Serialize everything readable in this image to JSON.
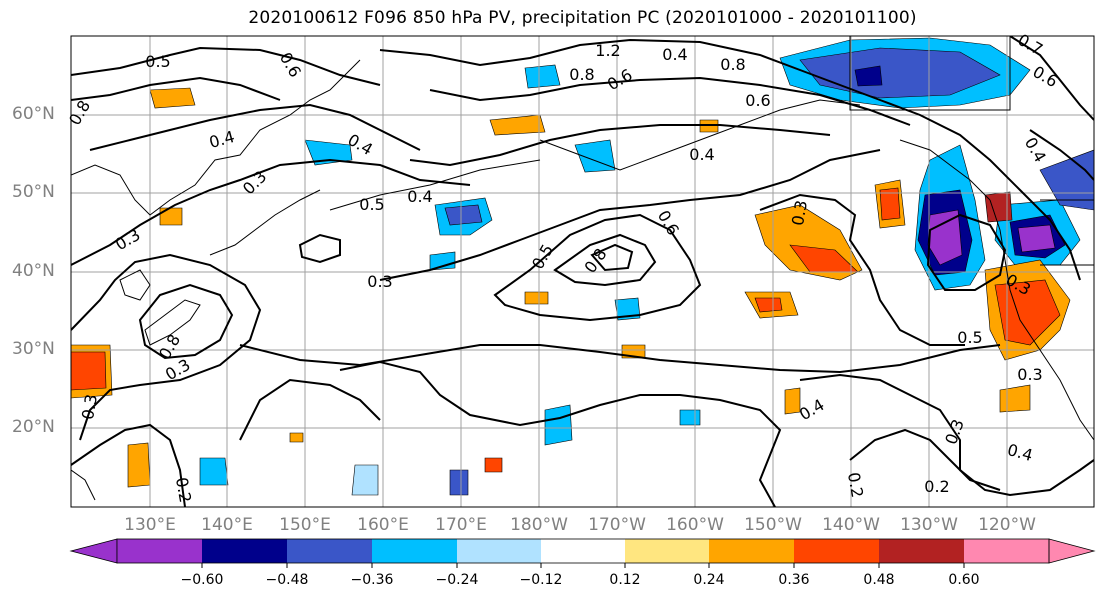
{
  "title": "2020100612 F096 850 hPa PV, precipitation PC (2020101000 - 2020101100)",
  "map": {
    "region": "North Pacific",
    "lat_labels": [
      "60°N",
      "50°N",
      "40°N",
      "30°N",
      "20°N"
    ],
    "lon_labels": [
      "130°E",
      "140°E",
      "150°E",
      "160°E",
      "170°E",
      "180°W",
      "170°W",
      "160°W",
      "150°W",
      "140°W",
      "130°W",
      "120°W"
    ],
    "contour_labels": [
      "0.5",
      "0.4",
      "0.8",
      "0.6",
      "0.4",
      "0.3",
      "0.3",
      "0.8",
      "0.3",
      "0.3",
      "0.5",
      "0.4",
      "0.3",
      "0.5",
      "0.8",
      "0.6",
      "0.4",
      "0.2",
      "0.4",
      "0.3",
      "0.5",
      "0.3",
      "0.4",
      "0.2",
      "1.2",
      "0.8",
      "0.6",
      "0.8",
      "0.6",
      "0.4",
      "0.3",
      "0.4",
      "0.2",
      "0.3",
      "0.6",
      "0.7"
    ]
  },
  "colorbar": {
    "ticks": [
      "−0.60",
      "−0.48",
      "−0.36",
      "−0.24",
      "−0.12",
      "0.12",
      "0.24",
      "0.36",
      "0.48",
      "0.60"
    ],
    "colors": [
      "#9932cc",
      "#00008b",
      "#3a56c8",
      "#00bfff",
      "#b0e2ff",
      "#ffffff",
      "#ffe680",
      "#ffa500",
      "#ff4500",
      "#b22222",
      "#ff88b0"
    ]
  }
}
